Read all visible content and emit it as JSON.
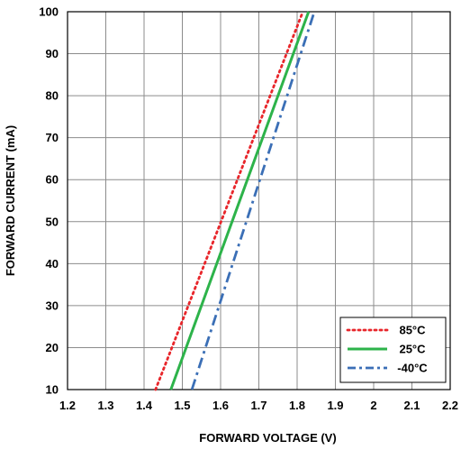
{
  "chart_data": {
    "type": "line",
    "title": "",
    "xlabel": "FORWARD VOLTAGE  (V)",
    "ylabel": "FORWARD CURRENT (mA)",
    "xlim": [
      1.2,
      2.2
    ],
    "ylim": [
      10,
      100
    ],
    "x_ticks": [
      "1.2",
      "1.3",
      "1.4",
      "1.5",
      "1.6",
      "1.7",
      "1.8",
      "1.9",
      "2",
      "2.1",
      "2.2"
    ],
    "y_ticks": [
      "10",
      "20",
      "30",
      "40",
      "50",
      "60",
      "70",
      "80",
      "90",
      "100"
    ],
    "grid": true,
    "legend_position": "bottom-right",
    "series": [
      {
        "name": "85°C",
        "color": "#e8262b",
        "style": "dotted",
        "x": [
          1.43,
          1.815
        ],
        "y": [
          10,
          100
        ]
      },
      {
        "name": "25°C",
        "color": "#2db34a",
        "style": "solid",
        "x": [
          1.47,
          1.83
        ],
        "y": [
          10,
          100
        ]
      },
      {
        "name": "-40°C",
        "color": "#3b6fb6",
        "style": "dashdot",
        "x": [
          1.525,
          1.845
        ],
        "y": [
          10,
          100
        ]
      }
    ]
  }
}
